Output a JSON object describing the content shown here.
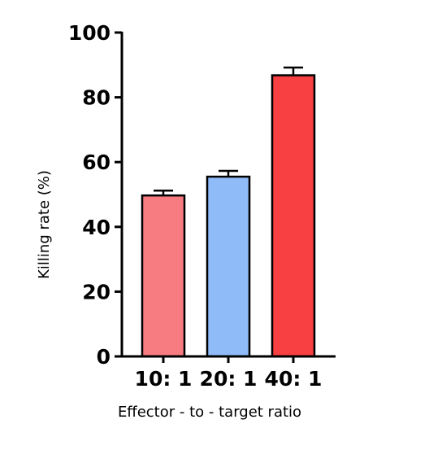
{
  "chart_data": {
    "type": "bar",
    "title": "",
    "xlabel": "Effector - to - target ratio",
    "ylabel": "Killing rate (%)",
    "ylim": [
      0,
      100
    ],
    "yticks": [
      0,
      20,
      40,
      60,
      80,
      100
    ],
    "grid": false,
    "legend": "none",
    "categories": [
      "10: 1",
      "20: 1",
      "40: 1"
    ],
    "values": [
      49.7,
      55.5,
      86.8
    ],
    "errors": [
      1.5,
      1.8,
      2.4
    ],
    "colors": [
      "#f77c82",
      "#8fbbf8",
      "#f84043"
    ]
  }
}
